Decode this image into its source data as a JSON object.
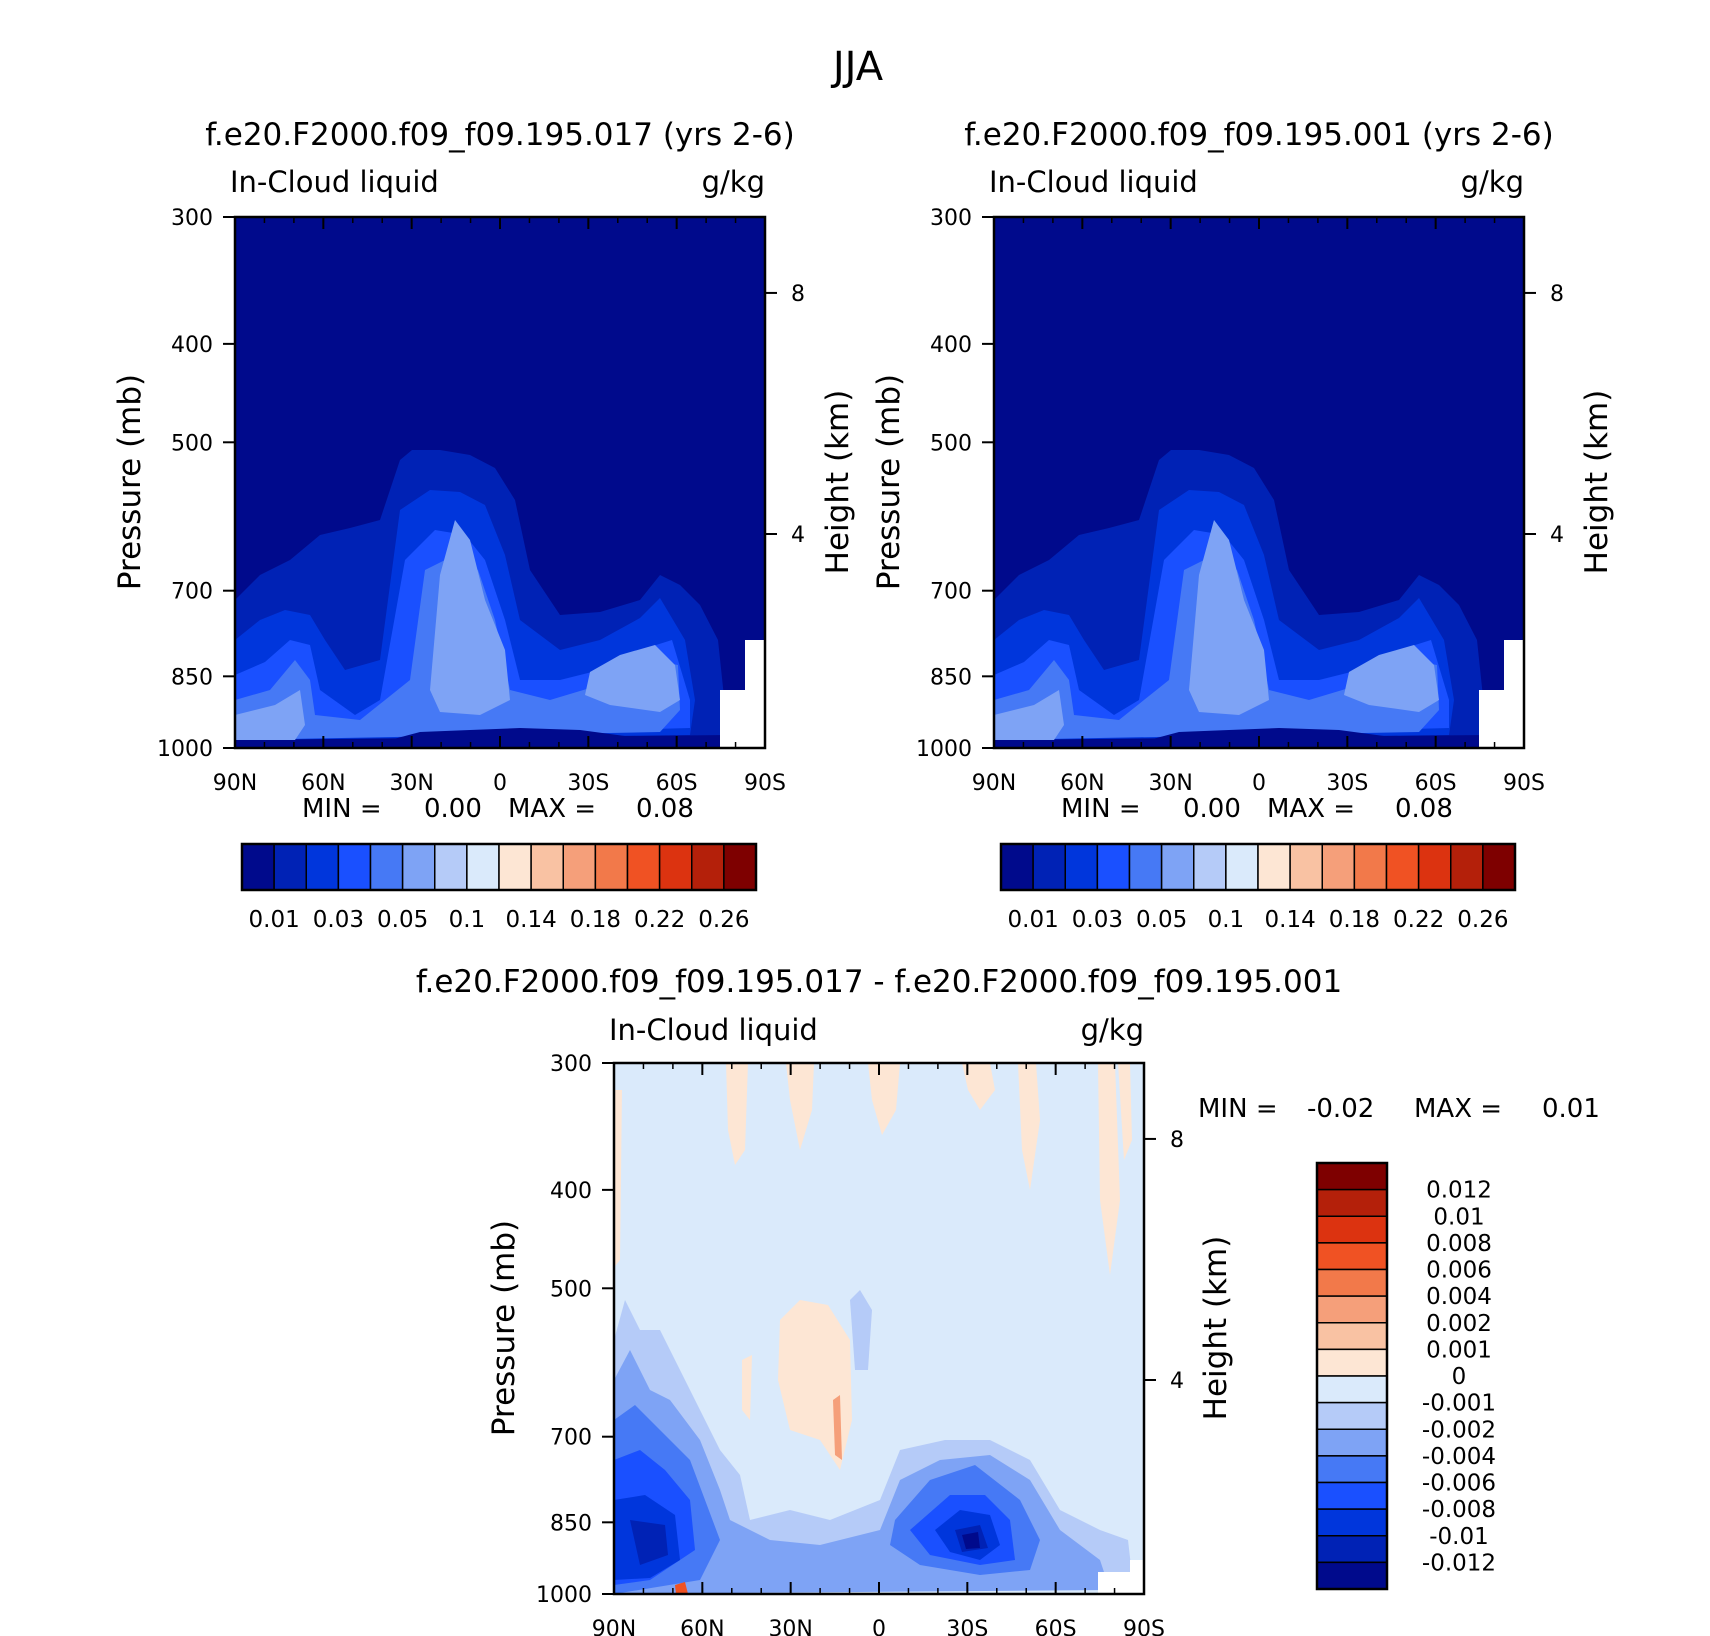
{
  "figure": {
    "season": "JJA"
  },
  "chart_data": [
    {
      "type": "heatmap",
      "id": "panel-a",
      "title": "f.e20.F2000.f09_f09.195.017 (yrs 2-6)",
      "subtitle_left": "In-Cloud liquid",
      "subtitle_right": "g/kg",
      "ylabel": "Pressure (mb)",
      "ylabel_right": "Height (km)",
      "xticks": [
        "90N",
        "60N",
        "30N",
        "0",
        "30S",
        "60S",
        "90S"
      ],
      "yticks": [
        "300",
        "400",
        "500",
        "700",
        "850",
        "1000"
      ],
      "yticks_right": [
        "8",
        "4"
      ],
      "ylim": [
        1000,
        300
      ],
      "stats": {
        "min_label": "MIN =",
        "min": "0.00",
        "max_label": "MAX =",
        "max": "0.08"
      },
      "colorbar": {
        "orientation": "horizontal",
        "labels": [
          "0.01",
          "0.03",
          "0.05",
          "0.1",
          "0.14",
          "0.18",
          "0.22",
          "0.26"
        ],
        "colors": [
          "#000a8c",
          "#0022b5",
          "#0036dc",
          "#1a50ff",
          "#4679f5",
          "#7ea3f5",
          "#b5cbf8",
          "#daeafb",
          "#fde6d4",
          "#f9c2a3",
          "#f59f7a",
          "#f2794a",
          "#f05223",
          "#dc3310",
          "#b4200a",
          "#7e0000"
        ]
      }
    },
    {
      "type": "heatmap",
      "id": "panel-b",
      "title": "f.e20.F2000.f09_f09.195.001 (yrs 2-6)",
      "subtitle_left": "In-Cloud liquid",
      "subtitle_right": "g/kg",
      "ylabel": "Pressure (mb)",
      "ylabel_right": "Height (km)",
      "xticks": [
        "90N",
        "60N",
        "30N",
        "0",
        "30S",
        "60S",
        "90S"
      ],
      "yticks": [
        "300",
        "400",
        "500",
        "700",
        "850",
        "1000"
      ],
      "yticks_right": [
        "8",
        "4"
      ],
      "ylim": [
        1000,
        300
      ],
      "stats": {
        "min_label": "MIN =",
        "min": "0.00",
        "max_label": "MAX =",
        "max": "0.08"
      },
      "colorbar": {
        "orientation": "horizontal",
        "labels": [
          "0.01",
          "0.03",
          "0.05",
          "0.1",
          "0.14",
          "0.18",
          "0.22",
          "0.26"
        ],
        "colors": [
          "#000a8c",
          "#0022b5",
          "#0036dc",
          "#1a50ff",
          "#4679f5",
          "#7ea3f5",
          "#b5cbf8",
          "#daeafb",
          "#fde6d4",
          "#f9c2a3",
          "#f59f7a",
          "#f2794a",
          "#f05223",
          "#dc3310",
          "#b4200a",
          "#7e0000"
        ]
      }
    },
    {
      "type": "heatmap",
      "id": "panel-diff",
      "title": "f.e20.F2000.f09_f09.195.017 - f.e20.F2000.f09_f09.195.001",
      "subtitle_left": "In-Cloud liquid",
      "subtitle_right": "g/kg",
      "ylabel": "Pressure (mb)",
      "ylabel_right": "Height (km)",
      "xticks": [
        "90N",
        "60N",
        "30N",
        "0",
        "30S",
        "60S",
        "90S"
      ],
      "yticks": [
        "300",
        "400",
        "500",
        "700",
        "850",
        "1000"
      ],
      "yticks_right": [
        "8",
        "4"
      ],
      "ylim": [
        1000,
        300
      ],
      "stats": {
        "min_label": "MIN =",
        "min": "-0.02",
        "max_label": "MAX =",
        "max": "0.01"
      },
      "colorbar": {
        "orientation": "vertical",
        "labels": [
          "0.012",
          "0.01",
          "0.008",
          "0.006",
          "0.004",
          "0.002",
          "0.001",
          "0",
          "-0.001",
          "-0.002",
          "-0.004",
          "-0.006",
          "-0.008",
          "-0.01",
          "-0.012"
        ],
        "colors": [
          "#7e0000",
          "#b4200a",
          "#dc3310",
          "#f05223",
          "#f2794a",
          "#f59f7a",
          "#f9c2a3",
          "#fde6d4",
          "#daeafb",
          "#b5cbf8",
          "#7ea3f5",
          "#4679f5",
          "#1a50ff",
          "#0036dc",
          "#0022b5",
          "#000a8c"
        ]
      }
    }
  ]
}
